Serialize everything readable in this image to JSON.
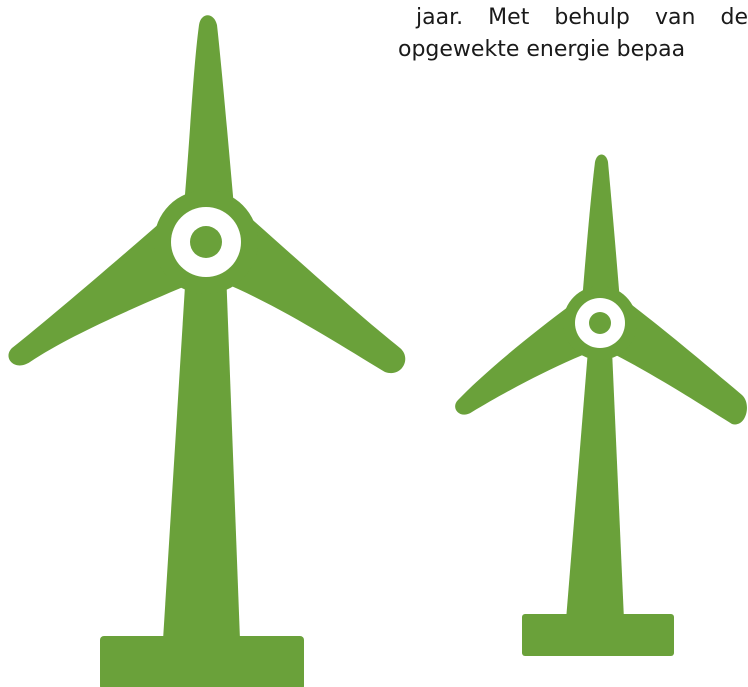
{
  "text_fragment": {
    "line_1": "jaar. Met behulp van de",
    "line_2": "opgewekte energie bepaa"
  },
  "illustration": {
    "turbines": [
      {
        "name": "large-wind-turbine",
        "blades": 3
      },
      {
        "name": "small-wind-turbine",
        "blades": 3
      }
    ],
    "colors": {
      "turbine": "#6aa13a",
      "hub": "#ffffff",
      "background": "#ffffff",
      "text": "#1a1a1a"
    }
  }
}
